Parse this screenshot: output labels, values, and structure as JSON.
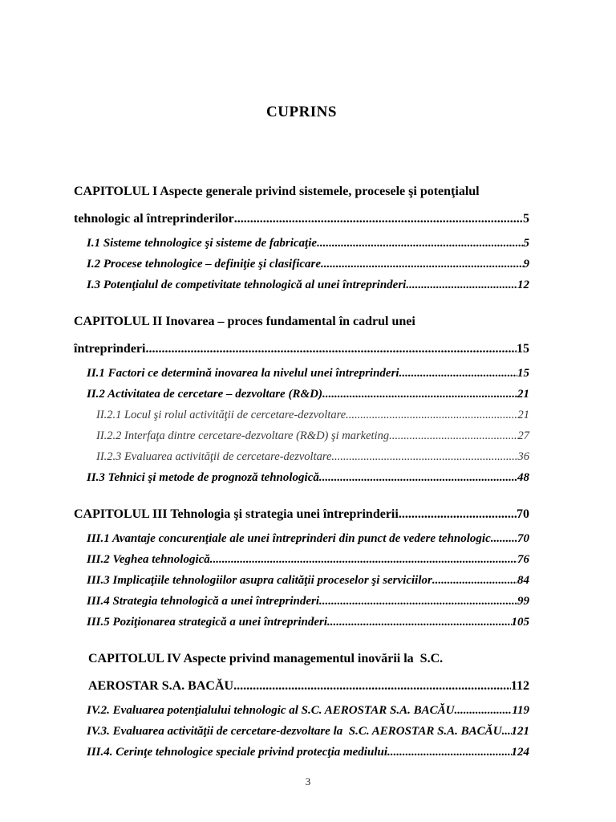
{
  "page": {
    "title": "CUPRINS",
    "footer_page_number": "3",
    "background_color": "#ffffff",
    "text_color": "#000000",
    "subsection_text_color": "#3a3a3a"
  },
  "toc": {
    "entries": [
      {
        "type": "chapter",
        "section_start": false,
        "lines": [
          "CAPITOLUL I Aspecte generale privind sistemele, procesele şi potenţialul",
          "tehnologic al întreprinderilor"
        ],
        "page": "5"
      },
      {
        "type": "sub",
        "lines": [
          "I.1 Sisteme tehnologice şi sisteme de fabricaţie"
        ],
        "page": "5"
      },
      {
        "type": "sub",
        "lines": [
          "I.2 Procese tehnologice – definiţie şi clasificare"
        ],
        "page": "9"
      },
      {
        "type": "sub",
        "lines": [
          "I.3 Potenţialul de competivitate tehnologică al unei întreprinderi."
        ],
        "page": "12"
      },
      {
        "type": "chapter",
        "section_start": true,
        "lines": [
          "CAPITOLUL II Inovarea – proces fundamental în cadrul unei",
          "întreprinderi"
        ],
        "page": "15"
      },
      {
        "type": "sub",
        "lines": [
          "II.1 Factori ce determină inovarea la nivelul unei întreprinderi."
        ],
        "page": "15"
      },
      {
        "type": "sub",
        "lines": [
          "II.2 Activitatea de cercetare – dezvoltare (R&D)."
        ],
        "page": "21"
      },
      {
        "type": "subsub",
        "lines": [
          "II.2.1 Locul şi rolul activităţii de cercetare-dezvoltare"
        ],
        "page": "21"
      },
      {
        "type": "subsub",
        "lines": [
          "II.2.2 Interfaţa dintre cercetare-dezvoltare (R&D) şi marketing"
        ],
        "page": "27"
      },
      {
        "type": "subsub",
        "lines": [
          "II.2.3 Evaluarea activităţii de cercetare-dezvoltare"
        ],
        "page": "36"
      },
      {
        "type": "sub",
        "lines": [
          "II.3 Tehnici şi metode de prognoză tehnologică."
        ],
        "page": "48"
      },
      {
        "type": "chapter",
        "section_start": true,
        "lines": [
          "CAPITOLUL III Tehnologia şi strategia unei întreprinderii"
        ],
        "page": "70"
      },
      {
        "type": "sub",
        "lines": [
          "III.1 Avantaje concurenţiale ale unei întreprinderi din punct de vedere tehnologic"
        ],
        "page": "70"
      },
      {
        "type": "sub",
        "lines": [
          "III.2 Veghea tehnologică."
        ],
        "page": "76"
      },
      {
        "type": "sub",
        "lines": [
          "III.3 Implicaţiile tehnologiilor asupra calităţii proceselor şi serviciilor"
        ],
        "page": "84"
      },
      {
        "type": "sub",
        "lines": [
          "III.4 Strategia tehnologică a unei întreprinderi."
        ],
        "page": "99"
      },
      {
        "type": "sub",
        "lines": [
          "III.5 Poziţionarea strategică a unei întreprinderi"
        ],
        "page": "105"
      },
      {
        "type": "chapter-indented",
        "section_start": true,
        "lines": [
          "CAPITOLUL IV Aspecte privind managementul inovării la  S.C.",
          "AEROSTAR S.A. BACĂU"
        ],
        "page": "112"
      },
      {
        "type": "sub",
        "lines": [
          "IV.2. Evaluarea potenţialului tehnologic al S.C. AEROSTAR S.A. BACĂU"
        ],
        "page": "119"
      },
      {
        "type": "sub",
        "lines": [
          "IV.3. Evaluarea activităţii de cercetare-dezvoltare la  S.C. AEROSTAR S.A. BACĂU"
        ],
        "page": "121"
      },
      {
        "type": "sub",
        "lines": [
          "III.4. Cerinţe tehnologice speciale privind protecţia mediului"
        ],
        "page": "124"
      }
    ]
  }
}
